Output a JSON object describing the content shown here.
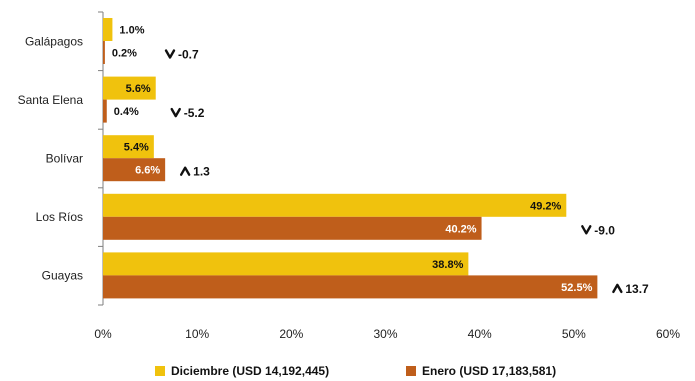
{
  "chart_data": {
    "type": "bar",
    "orientation": "horizontal",
    "categories": [
      "Galápagos",
      "Santa Elena",
      "Bolívar",
      "Los Ríos",
      "Guayas"
    ],
    "series": [
      {
        "name": "Diciembre (USD 14,192,445)",
        "color": "#F0C20D",
        "values": [
          1.0,
          5.6,
          5.4,
          49.2,
          38.8
        ],
        "labels": [
          "1.0%",
          "5.6%",
          "5.4%",
          "49.2%",
          "38.8%"
        ]
      },
      {
        "name": "Enero (USD 17,183,581)",
        "color": "#BF5E1B",
        "values": [
          0.2,
          0.4,
          6.6,
          40.2,
          52.5
        ],
        "labels": [
          "0.2%",
          "0.4%",
          "6.6%",
          "40.2%",
          "52.5%"
        ]
      }
    ],
    "changes": [
      {
        "direction": "down",
        "value": -0.7,
        "label": "-0.7"
      },
      {
        "direction": "down",
        "value": -5.2,
        "label": "-5.2"
      },
      {
        "direction": "up",
        "value": 1.3,
        "label": "1.3"
      },
      {
        "direction": "down",
        "value": -9.0,
        "label": "-9.0"
      },
      {
        "direction": "up",
        "value": 13.7,
        "label": "13.7"
      }
    ],
    "x_ticks": [
      "0%",
      "10%",
      "20%",
      "30%",
      "40%",
      "50%",
      "60%"
    ],
    "xlim": [
      0,
      60
    ],
    "grid": false,
    "legend_position": "bottom"
  }
}
